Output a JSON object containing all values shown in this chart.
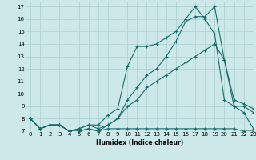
{
  "xlabel": "Humidex (Indice chaleur)",
  "background_color": "#cce8e8",
  "grid_color": "#aacfcf",
  "line_color": "#1a6b6b",
  "xlim": [
    -0.5,
    23
  ],
  "ylim": [
    7,
    17.4
  ],
  "xticks": [
    0,
    1,
    2,
    3,
    4,
    5,
    6,
    7,
    8,
    9,
    10,
    11,
    12,
    13,
    14,
    15,
    16,
    17,
    18,
    19,
    20,
    21,
    22,
    23
  ],
  "yticks": [
    7,
    8,
    9,
    10,
    11,
    12,
    13,
    14,
    15,
    16,
    17
  ],
  "line1_x": [
    0,
    1,
    2,
    3,
    4,
    5,
    6,
    7,
    8,
    9,
    10,
    11,
    12,
    13,
    14,
    15,
    16,
    17,
    18,
    19,
    20,
    21,
    22,
    23
  ],
  "line1_y": [
    8,
    7.2,
    7.5,
    7.5,
    7.0,
    7.2,
    7.5,
    7.5,
    8.3,
    8.8,
    12.2,
    13.8,
    13.8,
    14.0,
    14.5,
    15.0,
    16.0,
    17.0,
    16.0,
    14.8,
    9.5,
    9.0,
    9.0,
    8.5
  ],
  "line2_x": [
    0,
    1,
    2,
    3,
    4,
    5,
    6,
    7,
    8,
    9,
    10,
    11,
    12,
    13,
    14,
    15,
    16,
    17,
    18,
    19,
    20,
    21,
    22,
    23
  ],
  "line2_y": [
    8,
    7.2,
    7.5,
    7.5,
    7.0,
    7.0,
    7.2,
    7.0,
    7.2,
    7.2,
    7.2,
    7.2,
    7.2,
    7.2,
    7.2,
    7.2,
    7.2,
    7.2,
    7.2,
    7.2,
    7.2,
    7.2,
    7.0,
    7.0
  ],
  "line3_x": [
    0,
    1,
    2,
    3,
    4,
    5,
    6,
    7,
    8,
    9,
    10,
    11,
    12,
    13,
    14,
    15,
    16,
    17,
    18,
    19,
    20,
    21,
    22,
    23
  ],
  "line3_y": [
    8,
    7.2,
    7.5,
    7.5,
    7.0,
    7.2,
    7.5,
    7.2,
    7.5,
    8.0,
    9.5,
    10.5,
    11.5,
    12.0,
    13.0,
    14.2,
    15.8,
    16.2,
    16.2,
    17.0,
    12.7,
    9.5,
    9.2,
    8.8
  ],
  "line4_x": [
    0,
    1,
    2,
    3,
    4,
    5,
    6,
    7,
    8,
    9,
    10,
    11,
    12,
    13,
    14,
    15,
    16,
    17,
    18,
    19,
    20,
    21,
    22,
    23
  ],
  "line4_y": [
    8,
    7.2,
    7.5,
    7.5,
    7.0,
    7.0,
    7.2,
    7.0,
    7.5,
    8.0,
    9.0,
    9.5,
    10.5,
    11.0,
    11.5,
    12.0,
    12.5,
    13.0,
    13.5,
    14.0,
    12.7,
    9.0,
    8.5,
    7.2
  ]
}
